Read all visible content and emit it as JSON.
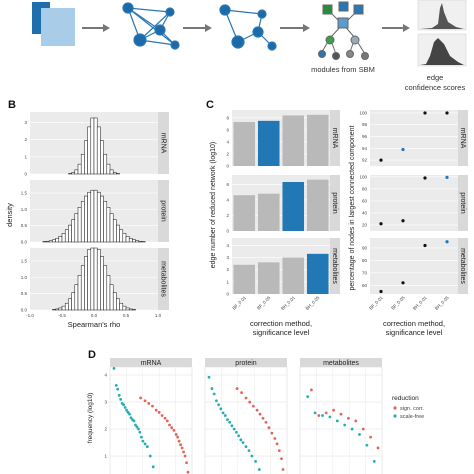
{
  "panels": {
    "b": "B",
    "c": "C",
    "d": "D"
  },
  "captions": {
    "sbm": "modules from SBM",
    "conf_1": "edge",
    "conf_2": "confidence scores"
  },
  "colors": {
    "gray": "#b9b9b9",
    "blue": "#2277b5",
    "red": "#e0665a",
    "teal": "#27aeb0",
    "dark": "#333333",
    "strip": "#d9d9d9"
  },
  "chart_data": [
    {
      "id": "B",
      "type": "bar",
      "subtype": "histogram",
      "xlabel": "Spearman's rho",
      "ylabel": "density",
      "xticks": [
        "-1.0",
        "-0.5",
        "0.0",
        "0.5",
        "1.0"
      ],
      "xlim": [
        -1.0,
        1.0
      ],
      "facets": [
        {
          "label": "mRNA",
          "yticks": [
            "0",
            "1",
            "2",
            "3"
          ],
          "ylim": [
            0,
            3.6
          ],
          "mean": 0.0,
          "sd": 0.12
        },
        {
          "label": "protein",
          "yticks": [
            "0.0",
            "0.5",
            "1.0",
            "1.5"
          ],
          "ylim": [
            0,
            1.9
          ],
          "mean": 0.0,
          "sd": 0.25
        },
        {
          "label": "metabolites",
          "yticks": [
            "0.0",
            "0.5",
            "1.0",
            "1.5"
          ],
          "ylim": [
            0,
            1.9
          ],
          "mean": 0.0,
          "sd": 0.2
        }
      ]
    },
    {
      "id": "C-left",
      "type": "bar",
      "xlabel_1": "correction method,",
      "xlabel_2": "significance level",
      "ylabel": "edge number of reduced network (log10)",
      "categories": [
        "BF_0.01",
        "BF_0.05",
        "BH_0.01",
        "BH_0.05"
      ],
      "facets": [
        {
          "label": "mRNA",
          "yticks": [
            "0",
            "2",
            "4",
            "6",
            "8"
          ],
          "ylim": [
            0,
            9.3
          ],
          "values": [
            7.3,
            7.5,
            8.4,
            8.5
          ],
          "highlight": 1
        },
        {
          "label": "protein",
          "yticks": [
            "0",
            "2",
            "4",
            "6"
          ],
          "ylim": [
            0,
            7.2
          ],
          "values": [
            4.6,
            4.8,
            6.3,
            6.6
          ],
          "highlight": 2
        },
        {
          "label": "metabolites",
          "yticks": [
            "0",
            "1",
            "2",
            "3",
            "4"
          ],
          "ylim": [
            0,
            4.6
          ],
          "values": [
            2.4,
            2.6,
            3.0,
            3.3
          ],
          "highlight": 3
        }
      ]
    },
    {
      "id": "C-right",
      "type": "scatter",
      "xlabel_1": "correction method,",
      "xlabel_2": "significance level",
      "ylabel": "percentage of nodes in largest connected component",
      "categories": [
        "BF_0.01",
        "BF_0.05",
        "BH_0.01",
        "BH_0.05"
      ],
      "facets": [
        {
          "label": "mRNA",
          "yticks": [
            "92",
            "94",
            "96",
            "98",
            "100"
          ],
          "ylim": [
            91,
            100.5
          ],
          "values": [
            92.0,
            93.8,
            100.0,
            100.0
          ],
          "highlight": 1
        },
        {
          "label": "protein",
          "yticks": [
            "20",
            "40",
            "60",
            "80",
            "100"
          ],
          "ylim": [
            10,
            103
          ],
          "values": [
            22,
            27,
            98,
            99
          ],
          "highlight": 3
        },
        {
          "label": "metabolites",
          "yticks": [
            "60",
            "70",
            "80",
            "90"
          ],
          "ylim": [
            53,
            98
          ],
          "values": [
            55,
            62,
            92,
            95
          ],
          "highlight": 3
        }
      ]
    },
    {
      "id": "D",
      "type": "scatter",
      "ylabel": "frequency (log10)",
      "yticks": [
        "0",
        "1",
        "2",
        "3",
        "4"
      ],
      "ylim": [
        0,
        4.3
      ],
      "legend": {
        "title": "reduction",
        "items": [
          "sign. corr.",
          "scale-free"
        ]
      },
      "facets": [
        {
          "label": "mRNA",
          "scale_free": [
            [
              0.0,
              4.25
            ],
            [
              0.03,
              3.62
            ],
            [
              0.05,
              3.48
            ],
            [
              0.07,
              3.25
            ],
            [
              0.09,
              3.1
            ],
            [
              0.11,
              2.95
            ],
            [
              0.13,
              2.9
            ],
            [
              0.15,
              2.8
            ],
            [
              0.17,
              2.7
            ],
            [
              0.19,
              2.62
            ],
            [
              0.21,
              2.55
            ],
            [
              0.23,
              2.42
            ],
            [
              0.25,
              2.35
            ],
            [
              0.27,
              2.3
            ],
            [
              0.29,
              2.15
            ],
            [
              0.31,
              2.08
            ],
            [
              0.33,
              2.0
            ],
            [
              0.35,
              1.88
            ],
            [
              0.37,
              1.7
            ],
            [
              0.39,
              1.55
            ],
            [
              0.42,
              1.45
            ],
            [
              0.45,
              1.35
            ],
            [
              0.49,
              1.0
            ],
            [
              0.53,
              0.6
            ]
          ],
          "sign_corr": [
            [
              0.36,
              3.15
            ],
            [
              0.42,
              3.05
            ],
            [
              0.47,
              2.95
            ],
            [
              0.52,
              2.85
            ],
            [
              0.57,
              2.7
            ],
            [
              0.61,
              2.62
            ],
            [
              0.65,
              2.5
            ],
            [
              0.69,
              2.4
            ],
            [
              0.72,
              2.3
            ],
            [
              0.75,
              2.15
            ],
            [
              0.78,
              2.05
            ],
            [
              0.81,
              1.95
            ],
            [
              0.84,
              1.8
            ],
            [
              0.86,
              1.7
            ],
            [
              0.88,
              1.55
            ],
            [
              0.9,
              1.42
            ],
            [
              0.92,
              1.3
            ],
            [
              0.94,
              1.15
            ],
            [
              0.96,
              1.0
            ],
            [
              0.98,
              0.75
            ],
            [
              1.0,
              0.4
            ]
          ]
        },
        {
          "label": "protein",
          "scale_free": [
            [
              0.0,
              3.92
            ],
            [
              0.04,
              3.5
            ],
            [
              0.07,
              3.3
            ],
            [
              0.1,
              3.05
            ],
            [
              0.13,
              2.9
            ],
            [
              0.16,
              2.75
            ],
            [
              0.19,
              2.6
            ],
            [
              0.22,
              2.5
            ],
            [
              0.25,
              2.35
            ],
            [
              0.28,
              2.25
            ],
            [
              0.31,
              2.12
            ],
            [
              0.34,
              2.0
            ],
            [
              0.37,
              1.88
            ],
            [
              0.4,
              1.75
            ],
            [
              0.43,
              1.6
            ],
            [
              0.46,
              1.5
            ],
            [
              0.5,
              1.35
            ],
            [
              0.54,
              1.2
            ],
            [
              0.58,
              1.0
            ],
            [
              0.63,
              0.8
            ],
            [
              0.68,
              0.5
            ]
          ],
          "sign_corr": [
            [
              0.38,
              3.5
            ],
            [
              0.44,
              3.35
            ],
            [
              0.5,
              3.15
            ],
            [
              0.55,
              3.0
            ],
            [
              0.6,
              2.85
            ],
            [
              0.65,
              2.7
            ],
            [
              0.69,
              2.55
            ],
            [
              0.73,
              2.4
            ],
            [
              0.77,
              2.25
            ],
            [
              0.81,
              2.05
            ],
            [
              0.85,
              1.85
            ],
            [
              0.89,
              1.65
            ],
            [
              0.92,
              1.45
            ],
            [
              0.95,
              1.2
            ],
            [
              0.98,
              0.9
            ],
            [
              1.0,
              0.5
            ]
          ]
        },
        {
          "label": "metabolites",
          "scale_free": [
            [
              0.05,
              3.2
            ],
            [
              0.15,
              2.6
            ],
            [
              0.25,
              2.5
            ],
            [
              0.35,
              2.45
            ],
            [
              0.45,
              2.3
            ],
            [
              0.55,
              2.15
            ],
            [
              0.65,
              2.0
            ],
            [
              0.75,
              1.8
            ],
            [
              0.85,
              1.4
            ],
            [
              0.95,
              0.8
            ]
          ],
          "sign_corr": [
            [
              0.1,
              3.45
            ],
            [
              0.2,
              2.5
            ],
            [
              0.3,
              2.6
            ],
            [
              0.4,
              2.7
            ],
            [
              0.5,
              2.55
            ],
            [
              0.6,
              2.4
            ],
            [
              0.7,
              2.3
            ],
            [
              0.8,
              2.0
            ],
            [
              0.9,
              1.7
            ],
            [
              1.0,
              1.3
            ]
          ]
        }
      ]
    }
  ]
}
